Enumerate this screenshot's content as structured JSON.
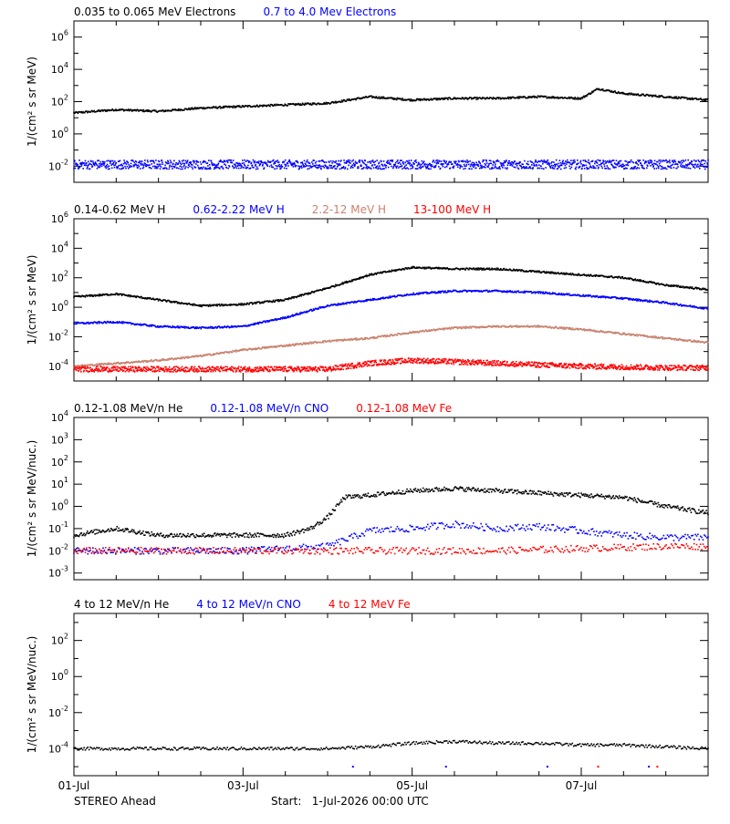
{
  "chart_data": [
    {
      "type": "scatter",
      "ylabel": "1/(cm² s sr MeV)",
      "yscale": "log",
      "ylim_exp": [
        -3,
        7
      ],
      "ytick_exps": [
        -2,
        0,
        2,
        4,
        6
      ],
      "xlim": [
        "01-Jul",
        "08-Jul 12:00"
      ],
      "legend": [
        {
          "label": "0.035 to 0.065 MeV Electrons",
          "color": "#000000"
        },
        {
          "label": "0.7 to 4.0 Mev Electrons",
          "color": "#0000ff"
        }
      ],
      "series": [
        {
          "label": "0.035 to 0.065 MeV Electrons",
          "color": "#000000",
          "days": [
            0,
            0.5,
            1,
            1.5,
            2,
            2.5,
            3,
            3.5,
            4,
            4.5,
            5,
            5.5,
            6,
            6.2,
            6.5,
            7,
            7.5
          ],
          "log_values": [
            1.3,
            1.5,
            1.4,
            1.6,
            1.7,
            1.8,
            1.9,
            2.3,
            2.1,
            2.2,
            2.2,
            2.3,
            2.2,
            2.8,
            2.5,
            2.3,
            2.1
          ]
        },
        {
          "label": "0.7 to 4.0 Mev Electrons",
          "color": "#0000ff",
          "days": [
            0,
            0.5,
            1,
            1.5,
            2,
            2.5,
            3,
            3.5,
            4,
            4.5,
            5,
            5.5,
            6,
            6.5,
            7,
            7.5
          ],
          "log_values": [
            -1.9,
            -1.9,
            -1.9,
            -1.9,
            -1.9,
            -1.9,
            -1.9,
            -1.9,
            -1.9,
            -1.9,
            -1.9,
            -1.9,
            -1.9,
            -1.9,
            -1.9,
            -1.9
          ]
        }
      ]
    },
    {
      "type": "scatter",
      "ylabel": "1/(cm² s sr MeV)",
      "yscale": "log",
      "ylim_exp": [
        -5,
        6
      ],
      "ytick_exps": [
        -4,
        -2,
        0,
        2,
        4,
        6
      ],
      "xlim": [
        "01-Jul",
        "08-Jul 12:00"
      ],
      "legend": [
        {
          "label": "0.14-0.62 MeV H",
          "color": "#000000"
        },
        {
          "label": "0.62-2.22 MeV H",
          "color": "#0000ff"
        },
        {
          "label": "2.2-12 MeV H",
          "color": "#c8826e"
        },
        {
          "label": "13-100 MeV H",
          "color": "#ff0000"
        }
      ],
      "series": [
        {
          "label": "0.14-0.62 MeV H",
          "color": "#000000",
          "days": [
            0,
            0.5,
            1,
            1.5,
            2,
            2.5,
            3,
            3.5,
            4,
            4.5,
            5,
            5.5,
            6,
            6.5,
            7,
            7.5
          ],
          "log_values": [
            0.7,
            0.9,
            0.5,
            0.1,
            0.2,
            0.5,
            1.3,
            2.2,
            2.7,
            2.6,
            2.6,
            2.4,
            2.2,
            2.0,
            1.5,
            1.2
          ]
        },
        {
          "label": "0.62-2.22 MeV H",
          "color": "#0000ff",
          "days": [
            0,
            0.5,
            1,
            1.5,
            2,
            2.5,
            3,
            3.5,
            4,
            4.5,
            5,
            5.5,
            6,
            6.5,
            7,
            7.5
          ],
          "log_values": [
            -1.1,
            -1.0,
            -1.3,
            -1.4,
            -1.3,
            -0.7,
            0.1,
            0.5,
            0.9,
            1.1,
            1.1,
            1.0,
            0.8,
            0.6,
            0.3,
            -0.1
          ]
        },
        {
          "label": "2.2-12 MeV H",
          "color": "#c8826e",
          "days": [
            0,
            0.5,
            1,
            1.5,
            2,
            2.5,
            3,
            3.5,
            4,
            4.5,
            5,
            5.5,
            6,
            6.5,
            7,
            7.5
          ],
          "log_values": [
            -4.0,
            -3.8,
            -3.6,
            -3.3,
            -2.9,
            -2.6,
            -2.3,
            -2.1,
            -1.7,
            -1.4,
            -1.3,
            -1.3,
            -1.5,
            -1.8,
            -2.1,
            -2.4
          ]
        },
        {
          "label": "13-100 MeV H",
          "color": "#ff0000",
          "days": [
            0,
            1,
            2,
            3,
            3.5,
            4,
            4.5,
            5,
            6,
            7,
            7.5
          ],
          "log_values": [
            -4.2,
            -4.2,
            -4.2,
            -4.2,
            -3.8,
            -3.6,
            -3.7,
            -3.8,
            -4.0,
            -4.1,
            -4.1
          ]
        }
      ]
    },
    {
      "type": "scatter",
      "ylabel": "1/(cm² s sr MeV/nuc.)",
      "yscale": "log",
      "ylim_exp": [
        -3.3,
        4
      ],
      "ytick_exps": [
        -3,
        -2,
        -1,
        0,
        1,
        2,
        3,
        4
      ],
      "xlim": [
        "01-Jul",
        "08-Jul 12:00"
      ],
      "legend": [
        {
          "label": "0.12-1.08 MeV/n He",
          "color": "#000000"
        },
        {
          "label": "0.12-1.08 MeV/n CNO",
          "color": "#0000ff"
        },
        {
          "label": "0.12-1.08 MeV Fe",
          "color": "#ff0000"
        }
      ],
      "series": [
        {
          "label": "0.12-1.08 MeV/n He",
          "color": "#000000",
          "days": [
            0,
            0.5,
            1,
            1.5,
            2,
            2.5,
            2.8,
            3.0,
            3.2,
            3.5,
            4,
            4.5,
            5,
            5.5,
            6,
            6.5,
            7,
            7.5
          ],
          "log_values": [
            -1.3,
            -1.0,
            -1.3,
            -1.3,
            -1.3,
            -1.3,
            -1.0,
            -0.5,
            0.4,
            0.5,
            0.7,
            0.8,
            0.7,
            0.6,
            0.5,
            0.4,
            0.0,
            -0.3
          ]
        },
        {
          "label": "0.12-1.08 MeV/n CNO",
          "color": "#0000ff",
          "days": [
            0,
            1,
            2,
            3,
            3.5,
            4,
            4.5,
            5,
            5.5,
            6,
            6.5,
            7,
            7.5
          ],
          "log_values": [
            -2.0,
            -2.0,
            -2.0,
            -1.8,
            -1.1,
            -1.0,
            -0.8,
            -1.0,
            -0.9,
            -1.1,
            -1.3,
            -1.4,
            -1.4
          ]
        },
        {
          "label": "0.12-1.08 MeV Fe",
          "color": "#ff0000",
          "days": [
            0,
            1,
            2,
            3,
            3.5,
            4,
            5,
            6,
            7,
            7.5
          ],
          "log_values": [
            -2.0,
            -2.0,
            -2.0,
            -2.0,
            -2.0,
            -2.0,
            -2.0,
            -1.9,
            -1.8,
            -1.8
          ]
        }
      ]
    },
    {
      "type": "scatter",
      "ylabel": "1/(cm² s sr MeV/nuc.)",
      "yscale": "log",
      "ylim_exp": [
        -5.5,
        3.5
      ],
      "ytick_exps": [
        -4,
        -2,
        0,
        2
      ],
      "xlim": [
        "01-Jul",
        "08-Jul 12:00"
      ],
      "xticks": [
        "01-Jul",
        "03-Jul",
        "05-Jul",
        "07-Jul"
      ],
      "legend": [
        {
          "label": "4 to 12 MeV/n He",
          "color": "#000000"
        },
        {
          "label": "4 to 12 MeV/n CNO",
          "color": "#0000ff"
        },
        {
          "label": "4 to 12 MeV Fe",
          "color": "#ff0000"
        }
      ],
      "series": [
        {
          "label": "4 to 12 MeV/n He",
          "color": "#000000",
          "days": [
            0,
            1,
            2,
            2.5,
            3,
            3.5,
            4,
            4.5,
            5,
            5.5,
            6,
            6.5,
            7,
            7.5
          ],
          "log_values": [
            -4.0,
            -4.0,
            -4.0,
            -4.0,
            -4.0,
            -3.9,
            -3.7,
            -3.6,
            -3.7,
            -3.7,
            -3.8,
            -3.8,
            -3.9,
            -4.0
          ]
        },
        {
          "label": "4 to 12 MeV/n CNO",
          "color": "#0000ff",
          "days": [
            3.3,
            4.4,
            5.6,
            6.8
          ],
          "log_values": [
            -5.0,
            -5.0,
            -5.0,
            -5.0
          ]
        },
        {
          "label": "4 to 12 MeV Fe",
          "color": "#ff0000",
          "days": [
            6.2,
            6.9
          ],
          "log_values": [
            -5.0,
            -5.0
          ]
        }
      ]
    }
  ],
  "footer": {
    "spacecraft": "STEREO Ahead",
    "start": "Start:   1-Jul-2026 00:00 UTC"
  }
}
